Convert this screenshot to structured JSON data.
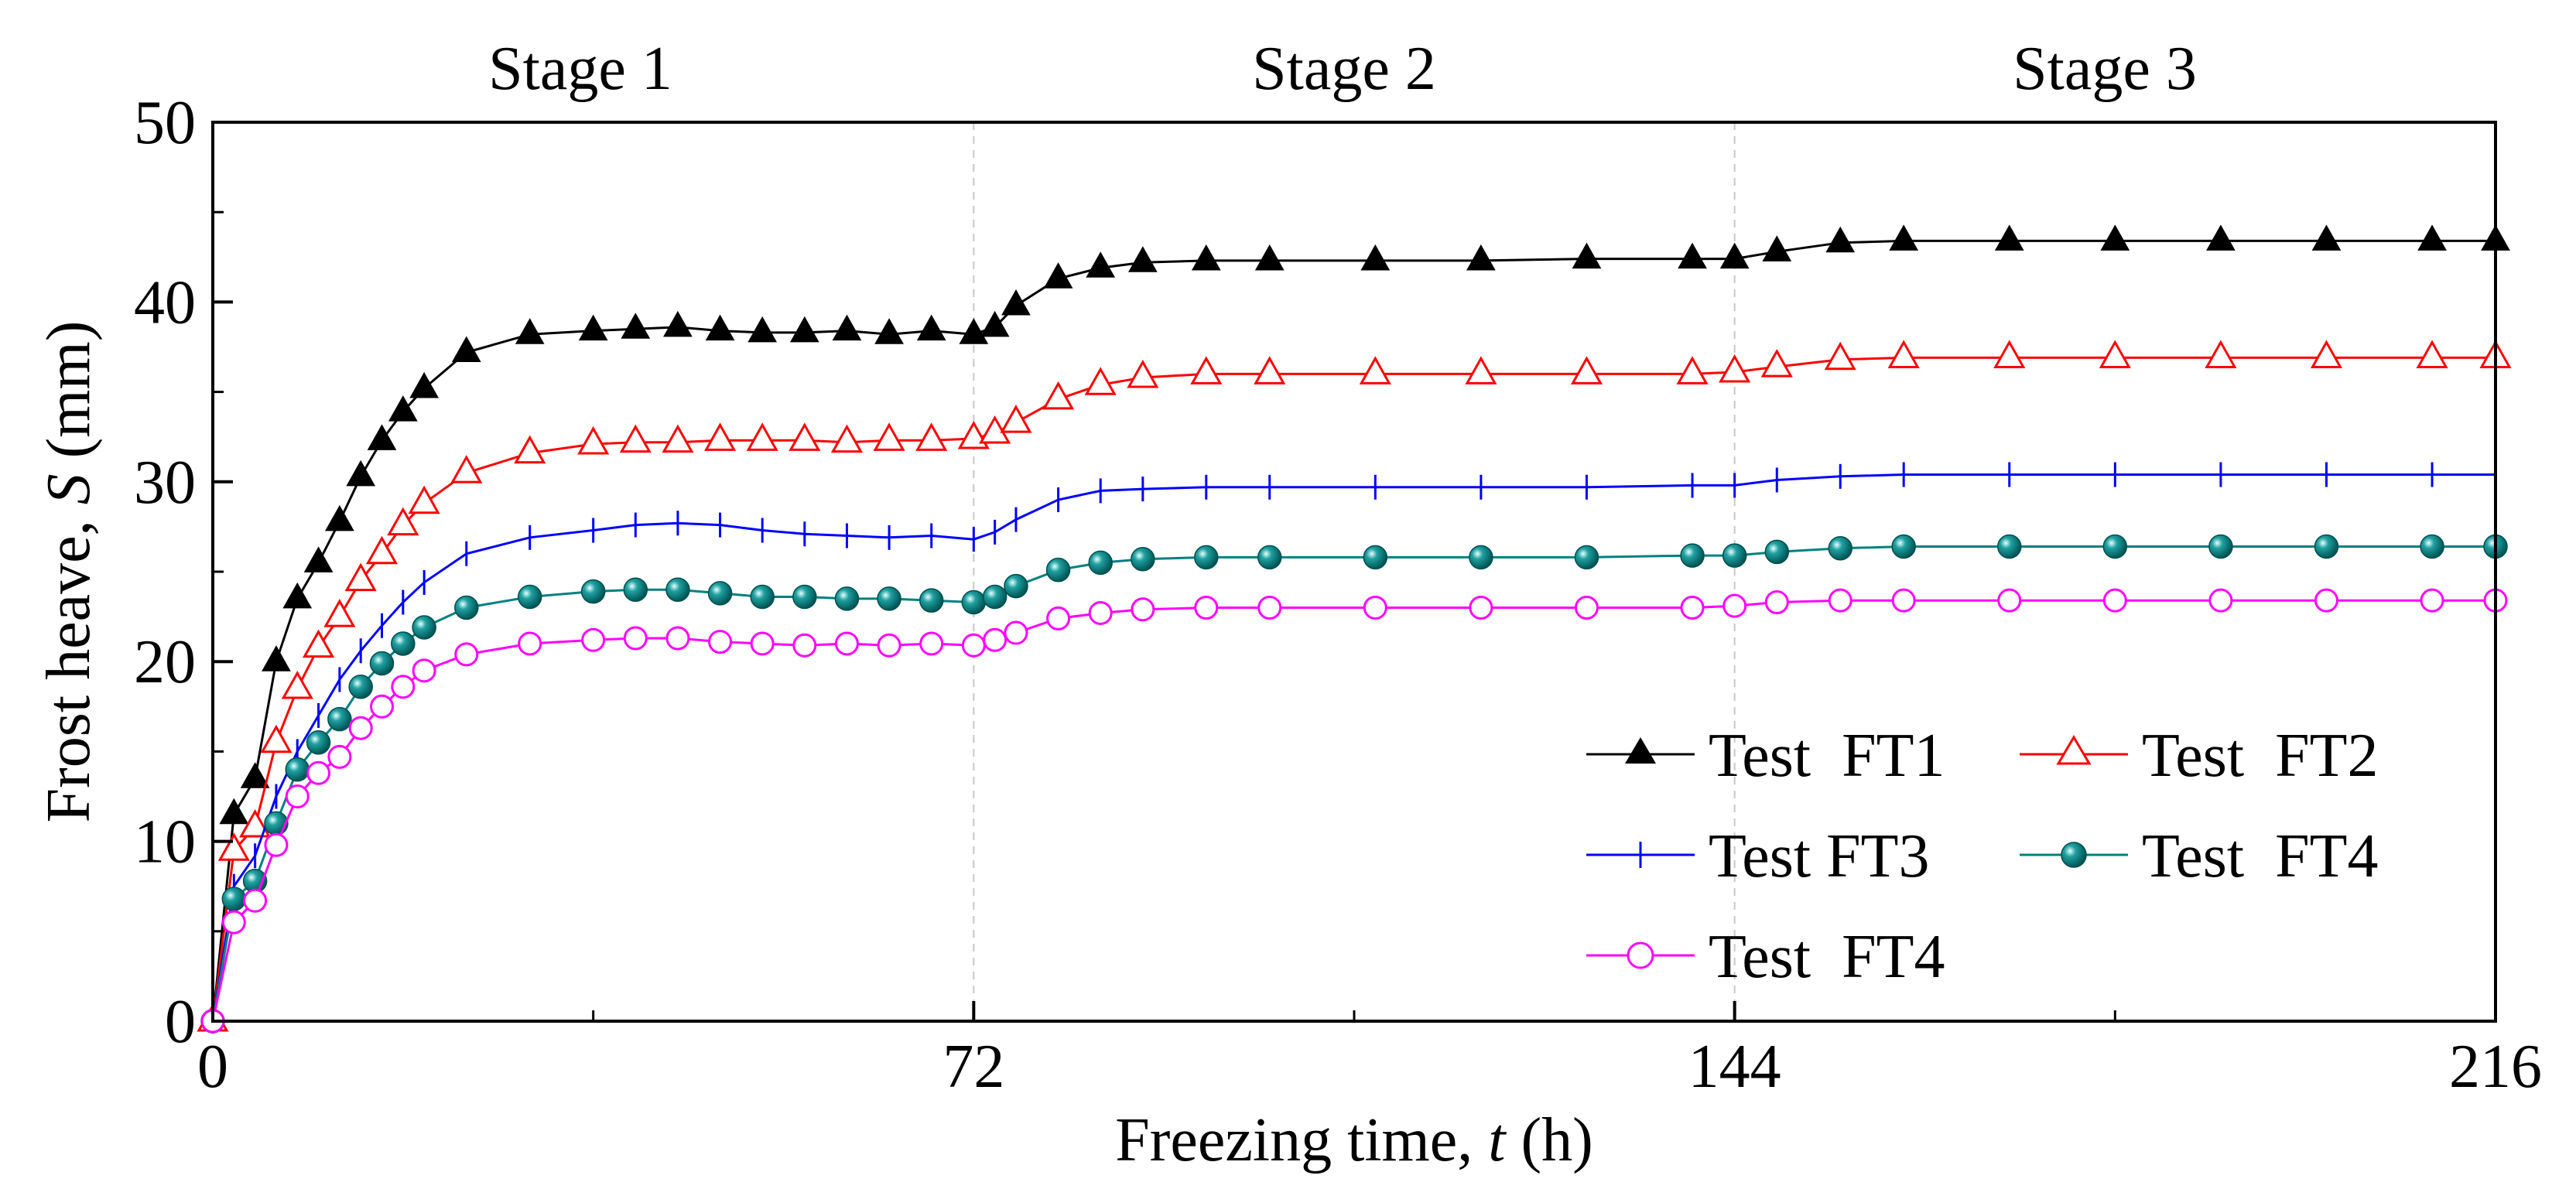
{
  "chart_data": {
    "type": "line",
    "xlabel_prefix": "Freezing time, ",
    "xlabel_var": "t",
    "xlabel_suffix": " (h)",
    "ylabel_prefix": "Frost heave, ",
    "ylabel_var": "S",
    "ylabel_suffix": " (mm)",
    "xlim": [
      0,
      216
    ],
    "ylim": [
      0,
      50
    ],
    "xticks": [
      0,
      72,
      144,
      216
    ],
    "yticks": [
      0,
      10,
      20,
      30,
      40,
      50
    ],
    "stages": [
      "Stage 1",
      "Stage 2",
      "Stage 3"
    ],
    "stage_boundaries": [
      72,
      144
    ],
    "series": [
      {
        "name": "Test  FT1",
        "color": "#000000",
        "marker": "triangle-filled",
        "x": [
          0,
          2,
          4,
          6,
          8,
          10,
          12,
          14,
          16,
          18,
          20,
          24,
          30,
          36,
          40,
          44,
          48,
          52,
          56,
          60,
          64,
          68,
          72,
          74,
          76,
          80,
          84,
          88,
          94,
          100,
          110,
          120,
          130,
          140,
          144,
          148,
          154,
          160,
          170,
          180,
          190,
          200,
          210,
          216
        ],
        "y": [
          0,
          11.5,
          13.5,
          20,
          23.5,
          25.5,
          27.8,
          30.3,
          32.3,
          33.9,
          35.2,
          37.2,
          38.2,
          38.4,
          38.5,
          38.6,
          38.4,
          38.3,
          38.3,
          38.4,
          38.2,
          38.4,
          38.2,
          38.6,
          39.8,
          41.3,
          41.9,
          42.2,
          42.3,
          42.3,
          42.3,
          42.3,
          42.4,
          42.4,
          42.4,
          42.8,
          43.3,
          43.4,
          43.4,
          43.4,
          43.4,
          43.4,
          43.4,
          43.4
        ]
      },
      {
        "name": "Test  FT2",
        "color": "#ff0000",
        "marker": "triangle-open",
        "x": [
          0,
          2,
          4,
          6,
          8,
          10,
          12,
          14,
          16,
          18,
          20,
          24,
          30,
          36,
          40,
          44,
          48,
          52,
          56,
          60,
          64,
          68,
          72,
          74,
          76,
          80,
          84,
          88,
          94,
          100,
          110,
          120,
          130,
          140,
          144,
          148,
          154,
          160,
          170,
          180,
          190,
          200,
          210,
          216
        ],
        "y": [
          0,
          9.5,
          10.8,
          15.5,
          18.5,
          20.8,
          22.5,
          24.5,
          26,
          27.6,
          28.8,
          30.5,
          31.6,
          32.1,
          32.2,
          32.2,
          32.3,
          32.3,
          32.3,
          32.2,
          32.3,
          32.3,
          32.4,
          32.7,
          33.3,
          34.6,
          35.4,
          35.8,
          36,
          36,
          36,
          36,
          36,
          36,
          36.1,
          36.4,
          36.8,
          36.9,
          36.9,
          36.9,
          36.9,
          36.9,
          36.9,
          36.9
        ]
      },
      {
        "name": "Test FT3",
        "color": "#0000ff",
        "marker": "plus",
        "x": [
          0,
          2,
          4,
          6,
          8,
          10,
          12,
          14,
          16,
          18,
          20,
          24,
          30,
          36,
          40,
          44,
          48,
          52,
          56,
          60,
          64,
          68,
          72,
          74,
          76,
          80,
          84,
          88,
          94,
          100,
          110,
          120,
          130,
          140,
          144,
          148,
          154,
          160,
          170,
          180,
          190,
          200,
          210,
          216
        ],
        "y": [
          0,
          7.5,
          9.2,
          12.5,
          15,
          17,
          19,
          20.6,
          22,
          23.3,
          24.4,
          26,
          26.9,
          27.3,
          27.6,
          27.7,
          27.6,
          27.3,
          27.1,
          27,
          26.9,
          27,
          26.8,
          27.2,
          27.9,
          29,
          29.5,
          29.6,
          29.7,
          29.7,
          29.7,
          29.7,
          29.7,
          29.8,
          29.8,
          30.1,
          30.3,
          30.4,
          30.4,
          30.4,
          30.4,
          30.4,
          30.4,
          30.4
        ]
      },
      {
        "name": "Test  FT4",
        "color": "#008080",
        "marker": "ball",
        "x": [
          0,
          2,
          4,
          6,
          8,
          10,
          12,
          14,
          16,
          18,
          20,
          24,
          30,
          36,
          40,
          44,
          48,
          52,
          56,
          60,
          64,
          68,
          72,
          74,
          76,
          80,
          84,
          88,
          94,
          100,
          110,
          120,
          130,
          140,
          144,
          148,
          154,
          160,
          170,
          180,
          190,
          200,
          210,
          216
        ],
        "y": [
          0,
          6.8,
          7.8,
          11,
          14,
          15.5,
          16.8,
          18.6,
          19.9,
          21,
          21.9,
          23,
          23.6,
          23.9,
          24,
          24,
          23.8,
          23.6,
          23.6,
          23.5,
          23.5,
          23.4,
          23.3,
          23.6,
          24.2,
          25.1,
          25.5,
          25.7,
          25.8,
          25.8,
          25.8,
          25.8,
          25.8,
          25.9,
          25.9,
          26.1,
          26.3,
          26.4,
          26.4,
          26.4,
          26.4,
          26.4,
          26.4,
          26.4
        ]
      },
      {
        "name": "Test  FT4",
        "color": "#ff00ff",
        "marker": "circle-open",
        "x": [
          0,
          2,
          4,
          6,
          8,
          10,
          12,
          14,
          16,
          18,
          20,
          24,
          30,
          36,
          40,
          44,
          48,
          52,
          56,
          60,
          64,
          68,
          72,
          74,
          76,
          80,
          84,
          88,
          94,
          100,
          110,
          120,
          130,
          140,
          144,
          148,
          154,
          160,
          170,
          180,
          190,
          200,
          210,
          216
        ],
        "y": [
          0,
          5.5,
          6.7,
          9.8,
          12.5,
          13.8,
          14.7,
          16.3,
          17.5,
          18.6,
          19.5,
          20.4,
          21,
          21.2,
          21.3,
          21.3,
          21.1,
          21,
          20.9,
          21,
          20.9,
          21,
          20.9,
          21.2,
          21.6,
          22.4,
          22.7,
          22.9,
          23,
          23,
          23,
          23,
          23,
          23,
          23.1,
          23.3,
          23.4,
          23.4,
          23.4,
          23.4,
          23.4,
          23.4,
          23.4,
          23.4
        ]
      }
    ],
    "legend_location": "lower-right, inside plot"
  }
}
